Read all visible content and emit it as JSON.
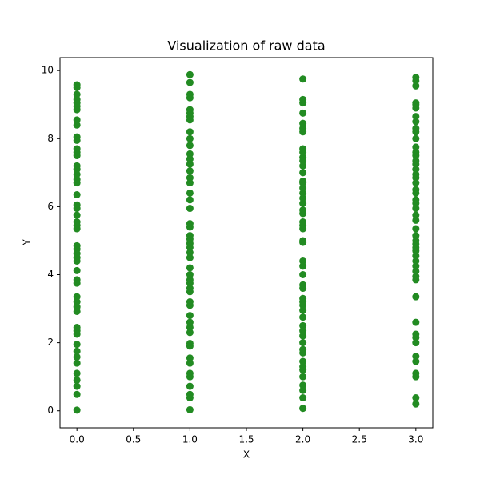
{
  "chart_data": {
    "type": "scatter",
    "title": "Visualization of raw data",
    "x_label": "X",
    "y_label": "Y",
    "color": "#228b22",
    "xlim": [
      -0.15,
      3.15
    ],
    "ylim": [
      -0.5,
      10.38
    ],
    "xticks": [
      {
        "value": 0,
        "label": "0.0"
      },
      {
        "value": 0.5,
        "label": "0.5"
      },
      {
        "value": 1,
        "label": "1.0"
      },
      {
        "value": 1.5,
        "label": "1.5"
      },
      {
        "value": 2,
        "label": "2.0"
      },
      {
        "value": 2.5,
        "label": "2.5"
      },
      {
        "value": 3,
        "label": "3.0"
      }
    ],
    "yticks": [
      0,
      2,
      4,
      6,
      8,
      10
    ],
    "x": [
      0,
      0,
      0,
      0,
      0,
      0,
      0,
      0,
      0,
      0,
      0,
      0,
      0,
      0,
      0,
      0,
      0,
      0,
      0,
      0,
      0,
      0,
      0,
      0,
      0,
      0,
      0,
      0,
      0,
      0,
      0,
      0,
      0,
      0,
      0,
      0,
      0,
      0,
      0,
      0,
      0,
      0,
      0,
      0,
      0,
      0,
      0,
      0,
      0,
      0,
      1,
      1,
      1,
      1,
      1,
      1,
      1,
      1,
      1,
      1,
      1,
      1,
      1,
      1,
      1,
      1,
      1,
      1,
      1,
      1,
      1,
      1,
      1,
      1,
      1,
      1,
      1,
      1,
      1,
      1,
      1,
      1,
      1,
      1,
      1,
      1,
      1,
      1,
      1,
      1,
      1,
      1,
      1,
      1,
      1,
      1,
      1,
      1,
      1,
      1,
      2,
      2,
      2,
      2,
      2,
      2,
      2,
      2,
      2,
      2,
      2,
      2,
      2,
      2,
      2,
      2,
      2,
      2,
      2,
      2,
      2,
      2,
      2,
      2,
      2,
      2,
      2,
      2,
      2,
      2,
      2,
      2,
      2,
      2,
      2,
      2,
      2,
      2,
      2,
      2,
      2,
      2,
      2,
      2,
      2,
      2,
      2,
      2,
      2,
      2,
      3,
      3,
      3,
      3,
      3,
      3,
      3,
      3,
      3,
      3,
      3,
      3,
      3,
      3,
      3,
      3,
      3,
      3,
      3,
      3,
      3,
      3,
      3,
      3,
      3,
      3,
      3,
      3,
      3,
      3,
      3,
      3,
      3,
      3,
      3,
      3,
      3,
      3,
      3,
      3,
      3,
      3,
      3,
      3,
      3,
      3,
      3,
      3,
      3,
      3
    ],
    "y": [
      0.02,
      0.48,
      0.72,
      0.9,
      1.1,
      1.4,
      1.58,
      1.75,
      1.95,
      2.25,
      2.35,
      2.45,
      2.92,
      3.05,
      3.2,
      3.35,
      3.75,
      3.85,
      4.12,
      4.4,
      4.5,
      4.62,
      4.75,
      4.85,
      5.35,
      5.45,
      5.55,
      5.75,
      5.95,
      6.05,
      6.35,
      6.7,
      6.8,
      6.95,
      7.1,
      7.2,
      7.5,
      7.6,
      7.7,
      7.95,
      8.05,
      8.4,
      8.55,
      8.85,
      8.95,
      9.05,
      9.15,
      9.3,
      9.5,
      9.58,
      0.03,
      0.38,
      0.48,
      0.72,
      1.0,
      1.1,
      1.4,
      1.55,
      1.9,
      1.98,
      2.3,
      2.45,
      2.6,
      2.8,
      3.1,
      3.2,
      3.5,
      3.6,
      3.75,
      3.85,
      4.0,
      4.2,
      4.5,
      4.65,
      4.8,
      4.92,
      5.05,
      5.15,
      5.4,
      5.5,
      5.95,
      6.2,
      6.4,
      6.7,
      6.85,
      7.05,
      7.25,
      7.4,
      7.55,
      7.8,
      8.0,
      8.2,
      8.55,
      8.65,
      8.75,
      8.85,
      9.2,
      9.3,
      9.65,
      9.88,
      0.07,
      0.38,
      0.6,
      0.75,
      1.0,
      1.2,
      1.3,
      1.45,
      1.7,
      1.8,
      2.0,
      2.2,
      2.35,
      2.5,
      2.75,
      2.95,
      3.1,
      3.2,
      3.3,
      3.6,
      3.7,
      4.0,
      4.25,
      4.4,
      4.95,
      5.0,
      5.35,
      5.45,
      5.55,
      5.8,
      5.9,
      6.1,
      6.25,
      6.4,
      6.55,
      6.7,
      6.75,
      7.0,
      7.2,
      7.35,
      7.45,
      7.6,
      7.7,
      8.2,
      8.3,
      8.45,
      8.75,
      9.05,
      9.15,
      9.75,
      0.2,
      0.38,
      1.0,
      1.1,
      1.45,
      1.6,
      2.0,
      2.15,
      2.25,
      2.6,
      3.35,
      3.85,
      3.95,
      4.1,
      4.25,
      4.4,
      4.55,
      4.7,
      4.8,
      4.9,
      5.0,
      5.15,
      5.35,
      5.6,
      5.75,
      5.95,
      6.1,
      6.2,
      6.4,
      6.5,
      6.7,
      6.85,
      6.95,
      7.1,
      7.25,
      7.35,
      7.5,
      7.6,
      7.75,
      8.0,
      8.2,
      8.3,
      8.5,
      8.65,
      8.9,
      9.0,
      9.05,
      9.55,
      9.7,
      9.8
    ]
  }
}
